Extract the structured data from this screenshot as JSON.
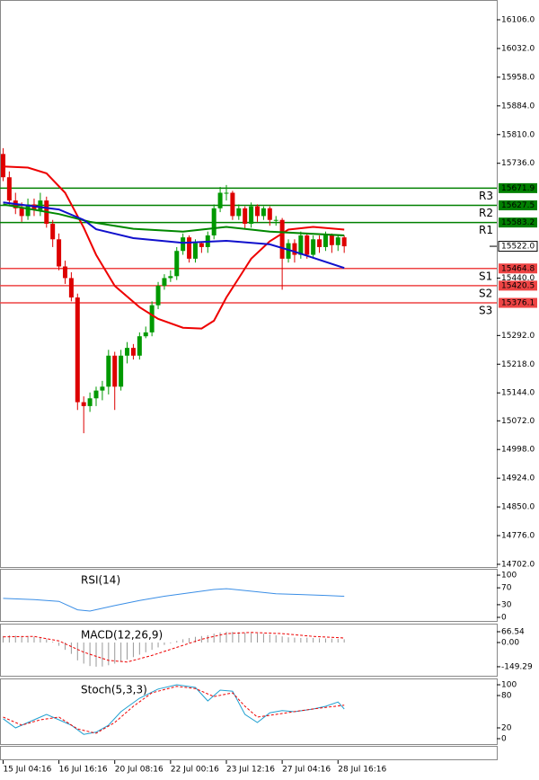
{
  "chart_data": [
    {
      "type": "candlestick",
      "open": [
        15760,
        15700,
        15640,
        15620,
        15600,
        15630,
        15615,
        15640,
        15580,
        15540,
        15470,
        15440,
        15390,
        15120,
        15110,
        15130,
        15150,
        15160,
        15240,
        15160,
        15240,
        15260,
        15240,
        15290,
        15300,
        15370,
        15420,
        15440,
        15445,
        15510,
        15545,
        15490,
        15530,
        15520,
        15550,
        15620,
        15660,
        15660,
        15600,
        15620,
        15580,
        15625,
        15600,
        15620,
        15590,
        15590,
        15490,
        15530,
        15500,
        15550,
        15500,
        15540,
        15520,
        15550,
        15525,
        15545
      ],
      "high": [
        15775,
        15715,
        15660,
        15635,
        15645,
        15645,
        15660,
        15650,
        15590,
        15555,
        15485,
        15455,
        15400,
        15135,
        15145,
        15160,
        15175,
        15255,
        15250,
        15255,
        15275,
        15270,
        15300,
        15315,
        15380,
        15430,
        15450,
        15460,
        15520,
        15555,
        15550,
        15540,
        15535,
        15560,
        15630,
        15675,
        15680,
        15665,
        15630,
        15625,
        15635,
        15630,
        15625,
        15625,
        15600,
        15595,
        15540,
        15540,
        15560,
        15555,
        15550,
        15550,
        15560,
        15555,
        15550,
        15550
      ],
      "low": [
        15690,
        15630,
        15605,
        15585,
        15590,
        15600,
        15600,
        15570,
        15520,
        15460,
        15425,
        15380,
        15100,
        15040,
        15095,
        15110,
        15125,
        15140,
        15100,
        15150,
        15220,
        15230,
        15230,
        15285,
        15290,
        15360,
        15410,
        15430,
        15435,
        15500,
        15480,
        15480,
        15505,
        15505,
        15540,
        15610,
        15640,
        15590,
        15590,
        15565,
        15570,
        15585,
        15590,
        15575,
        15575,
        15410,
        15480,
        15480,
        15490,
        15490,
        15490,
        15505,
        15510,
        15505,
        15510,
        15505
      ],
      "close": [
        15700,
        15640,
        15620,
        15600,
        15630,
        15615,
        15640,
        15580,
        15540,
        15470,
        15440,
        15390,
        15120,
        15110,
        15130,
        15150,
        15160,
        15240,
        15160,
        15240,
        15260,
        15240,
        15290,
        15300,
        15370,
        15420,
        15440,
        15445,
        15510,
        15545,
        15490,
        15530,
        15520,
        15550,
        15620,
        15660,
        15660,
        15600,
        15620,
        15580,
        15625,
        15600,
        15620,
        15590,
        15590,
        15490,
        15530,
        15500,
        15550,
        15500,
        15540,
        15520,
        15550,
        15525,
        15545,
        15522
      ],
      "up_color": "#009900",
      "down_color": "#dd0000",
      "xlim": [
        -0.5,
        79.6
      ],
      "ylim": [
        14695,
        16157
      ],
      "yticks": [
        {
          "value": 16106,
          "label": "16106.0"
        },
        {
          "value": 16032,
          "label": "16032.0"
        },
        {
          "value": 15958,
          "label": "15958.0"
        },
        {
          "value": 15884,
          "label": "15884.0"
        },
        {
          "value": 15810,
          "label": "15810.0"
        },
        {
          "value": 15736,
          "label": "15736.0"
        },
        {
          "value": 15440,
          "label": "15440.0"
        },
        {
          "value": 15292,
          "label": "15292.0"
        },
        {
          "value": 15218,
          "label": "15218.0"
        },
        {
          "value": 15144,
          "label": "15144.0"
        },
        {
          "value": 15072,
          "label": "15072.0"
        },
        {
          "value": 14998,
          "label": "14998.0"
        },
        {
          "value": 14924,
          "label": "14924.0"
        },
        {
          "value": 14850,
          "label": "14850.0"
        },
        {
          "value": 14776,
          "label": "14776.0"
        },
        {
          "value": 14702,
          "label": "14702.0"
        }
      ],
      "xticks": [
        {
          "value": 0,
          "label": "15 Jul 04:16"
        },
        {
          "value": 9,
          "label": "16 Jul 16:16"
        },
        {
          "value": 18,
          "label": "20 Jul 08:16"
        },
        {
          "value": 27,
          "label": "22 Jul 00:16"
        },
        {
          "value": 36,
          "label": "23 Jul 12:16"
        },
        {
          "value": 45,
          "label": "27 Jul 04:16"
        },
        {
          "value": 54,
          "label": "28 Jul 16:16"
        }
      ],
      "series": [
        {
          "color": "#ee0000",
          "x": [
            0,
            4,
            7,
            10,
            13,
            15,
            18,
            22,
            25,
            29,
            32,
            34,
            36,
            38,
            40,
            43,
            46,
            50,
            55
          ],
          "values": [
            15728,
            15725,
            15710,
            15660,
            15570,
            15500,
            15420,
            15365,
            15335,
            15312,
            15310,
            15330,
            15390,
            15440,
            15490,
            15535,
            15565,
            15572,
            15565
          ]
        },
        {
          "color": "#008800",
          "x": [
            0,
            9,
            14,
            21,
            29,
            36,
            43,
            55
          ],
          "values": [
            15630,
            15605,
            15585,
            15567,
            15560,
            15572,
            15560,
            15550
          ]
        },
        {
          "color": "#1010cc",
          "x": [
            0,
            9,
            13,
            15,
            21,
            29,
            36,
            43,
            47,
            55
          ],
          "values": [
            15635,
            15617,
            15590,
            15566,
            15543,
            15531,
            15536,
            15527,
            15508,
            15466
          ]
        }
      ],
      "levels": {
        "names": [
          "R3",
          "R2",
          "R1",
          "S1",
          "S2",
          "S3"
        ],
        "values": [
          15671.9,
          15627.5,
          15583.2,
          15464.8,
          15420.5,
          15376.1
        ],
        "value_labels": [
          "15671.9",
          "15627.5",
          "15583.2",
          "15464.8",
          "15420.5",
          "15376.1"
        ],
        "colors": [
          "#008000",
          "#008000",
          "#008000",
          "#ee4444",
          "#ee4444",
          "#ee4444"
        ]
      },
      "last_price": {
        "value": 15522,
        "label": "15522.0"
      }
    },
    {
      "type": "line",
      "title": "RSI(14)",
      "ylim": [
        -8.5,
        115
      ],
      "yticks": [
        100,
        70,
        30,
        0
      ],
      "series": [
        {
          "color": "#3a8ee6",
          "x": [
            0,
            5,
            9,
            12,
            14,
            18,
            22,
            26,
            30,
            34,
            36,
            40,
            44,
            48,
            52,
            55
          ],
          "values": [
            45,
            42,
            38,
            18,
            15,
            28,
            40,
            50,
            58,
            66,
            68,
            62,
            56,
            54,
            52,
            50
          ]
        }
      ]
    },
    {
      "type": "macd",
      "title": "MACD(12,26,9)",
      "ylim": [
        -205,
        116.5
      ],
      "yticks": [
        66.54,
        {
          "value": 0,
          "label": "0.00"
        },
        -149.29
      ],
      "color": "#999999",
      "values": [
        40,
        45,
        42,
        40,
        38,
        35,
        30,
        20,
        5,
        -20,
        -45,
        -70,
        -110,
        -130,
        -145,
        -149,
        -148,
        -140,
        -130,
        -120,
        -105,
        -90,
        -75,
        -60,
        -45,
        -30,
        -15,
        -5,
        10,
        20,
        28,
        35,
        40,
        45,
        55,
        62,
        66,
        66,
        64,
        60,
        58,
        56,
        54,
        50,
        45,
        38,
        32,
        30,
        28,
        30,
        28,
        26,
        25,
        24,
        22,
        20
      ],
      "series": [
        {
          "color": "#ee0000",
          "dashed": true,
          "x": [
            0,
            5,
            9,
            13,
            17,
            20,
            24,
            28,
            32,
            36,
            40,
            45,
            50,
            55
          ],
          "values": [
            35,
            38,
            10,
            -60,
            -110,
            -120,
            -80,
            -30,
            20,
            55,
            62,
            55,
            38,
            28
          ]
        }
      ]
    },
    {
      "type": "line",
      "title": "Stoch(5,3,3)",
      "ylim": [
        -10,
        111.7
      ],
      "yticks": [
        100,
        80,
        20,
        0
      ],
      "series": [
        {
          "color": "#20a0d0",
          "x": [
            0,
            2,
            4,
            6,
            7,
            9,
            11,
            13,
            15,
            17,
            19,
            22,
            25,
            28,
            31,
            33,
            35,
            37,
            39,
            41,
            43,
            45,
            47,
            50,
            52,
            54,
            55
          ],
          "values": [
            37,
            20,
            30,
            40,
            45,
            35,
            25,
            8,
            12,
            25,
            50,
            75,
            92,
            100,
            95,
            70,
            90,
            88,
            45,
            30,
            48,
            52,
            50,
            55,
            60,
            68,
            55
          ]
        },
        {
          "color": "#ee0000",
          "dashed": true,
          "x": [
            0,
            3,
            6,
            9,
            12,
            15,
            18,
            21,
            24,
            28,
            31,
            34,
            37,
            39,
            41,
            44,
            48,
            52,
            55
          ],
          "values": [
            40,
            25,
            35,
            40,
            18,
            10,
            30,
            60,
            85,
            97,
            93,
            78,
            85,
            60,
            40,
            45,
            52,
            58,
            62
          ]
        }
      ]
    }
  ]
}
